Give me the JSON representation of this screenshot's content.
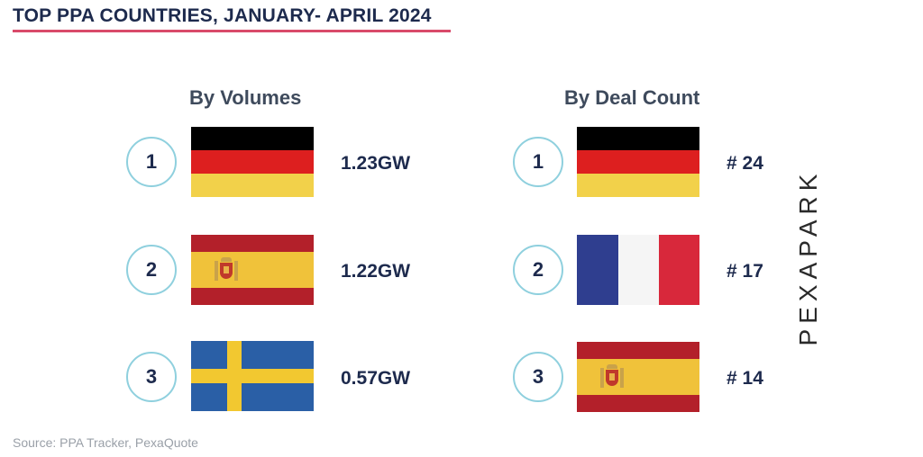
{
  "title": "TOP PPA COUNTRIES, JANUARY- APRIL 2024",
  "volumes": {
    "heading": "By Volumes",
    "items": [
      {
        "rank": "1",
        "flag": "germany-flag",
        "value": "1.23GW"
      },
      {
        "rank": "2",
        "flag": "spain-flag",
        "value": "1.22GW"
      },
      {
        "rank": "3",
        "flag": "sweden-flag",
        "value": "0.57GW"
      }
    ]
  },
  "deals": {
    "heading": "By Deal Count",
    "items": [
      {
        "rank": "1",
        "flag": "germany-flag",
        "value": "# 24"
      },
      {
        "rank": "2",
        "flag": "france-flag",
        "value": "# 17"
      },
      {
        "rank": "3",
        "flag": "spain-flag",
        "value": "# 14"
      }
    ]
  },
  "source": "Source: PPA Tracker, PexaQuote",
  "brand": "PEXAPARK",
  "colors": {
    "accent_underline": "#d94a6a",
    "rank_circle": "#8fd0de",
    "text": "#1d2a4d"
  }
}
